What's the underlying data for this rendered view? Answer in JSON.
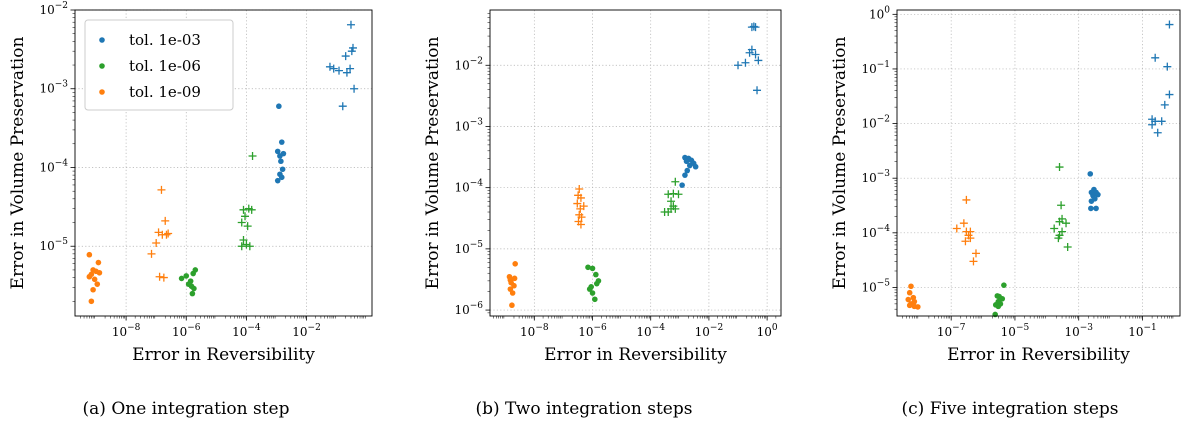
{
  "colors": {
    "tol_1e-03": "#1f77b4",
    "tol_1e-06": "#2ca02c",
    "tol_1e-09": "#ff7f0e"
  },
  "chart_data": [
    {
      "type": "scatter",
      "caption": "(a) One integration step",
      "xlabel": "Error in Reversibility",
      "ylabel": "Error in Volume Preservation",
      "xscale": "log",
      "yscale": "log",
      "xlim": [
        2e-10,
        1.5
      ],
      "ylim": [
        1.3e-06,
        0.01
      ],
      "xticks": [
        -8,
        -6,
        -4,
        -2
      ],
      "yticks": [
        -5,
        -4,
        -3,
        -2
      ],
      "grid": true,
      "legend": {
        "placement": "top-left",
        "entries": [
          {
            "label": "tol. 1e-03",
            "color_key": "tol_1e-03"
          },
          {
            "label": "tol. 1e-06",
            "color_key": "tol_1e-06"
          },
          {
            "label": "tol. 1e-09",
            "color_key": "tol_1e-09"
          }
        ]
      },
      "series": [
        {
          "name": "tol. 1e-03",
          "color_key": "tol_1e-03",
          "marker": "dot",
          "points": [
            [
              0.0012,
              0.0006
            ],
            [
              0.0015,
              0.00021
            ],
            [
              0.0011,
              0.00016
            ],
            [
              0.0013,
              0.00014
            ],
            [
              0.0017,
              0.00015
            ],
            [
              0.0014,
              0.00012
            ],
            [
              0.0016,
              9.5e-05
            ],
            [
              0.0013,
              8.2e-05
            ],
            [
              0.0011,
              6.8e-05
            ],
            [
              0.0015,
              7.5e-05
            ]
          ]
        },
        {
          "name": "tol. 1e-03",
          "color_key": "tol_1e-03",
          "marker": "plus",
          "points": [
            [
              0.3,
              0.0065
            ],
            [
              0.35,
              0.0033
            ],
            [
              0.32,
              0.003
            ],
            [
              0.2,
              0.0026
            ],
            [
              0.28,
              0.0018
            ],
            [
              0.22,
              0.0016
            ],
            [
              0.06,
              0.0019
            ],
            [
              0.08,
              0.0018
            ],
            [
              0.12,
              0.0017
            ],
            [
              0.38,
              0.001
            ],
            [
              0.16,
              0.0006
            ]
          ]
        },
        {
          "name": "tol. 1e-06",
          "color_key": "tol_1e-06",
          "marker": "dot",
          "points": [
            [
              7e-07,
              3.9e-06
            ],
            [
              1e-06,
              4.2e-06
            ],
            [
              1.4e-06,
              3.6e-06
            ],
            [
              1.7e-06,
              4.5e-06
            ],
            [
              2e-06,
              5e-06
            ],
            [
              1.5e-06,
              3.1e-06
            ],
            [
              1.8e-06,
              2.9e-06
            ],
            [
              1.6e-06,
              2.5e-06
            ],
            [
              1.2e-06,
              3.3e-06
            ]
          ]
        },
        {
          "name": "tol. 1e-06",
          "color_key": "tol_1e-06",
          "marker": "plus",
          "points": [
            [
              0.00016,
              0.00014
            ],
            [
              0.00012,
              3e-05
            ],
            [
              8e-05,
              2.9e-05
            ],
            [
              0.00015,
              2.9e-05
            ],
            [
              9e-05,
              2.4e-05
            ],
            [
              7e-05,
              2e-05
            ],
            [
              0.00011,
              1.8e-05
            ],
            [
              8e-05,
              1.2e-05
            ],
            [
              0.0001,
              1.05e-05
            ],
            [
              0.00013,
              1e-05
            ],
            [
              7e-05,
              1e-05
            ]
          ]
        },
        {
          "name": "tol. 1e-09",
          "color_key": "tol_1e-09",
          "marker": "dot",
          "points": [
            [
              6e-10,
              7.8e-06
            ],
            [
              1.2e-09,
              6.2e-06
            ],
            [
              8e-10,
              5e-06
            ],
            [
              1e-09,
              4.8e-06
            ],
            [
              1.3e-09,
              4.6e-06
            ],
            [
              7e-10,
              4.4e-06
            ],
            [
              6e-10,
              4.1e-06
            ],
            [
              9e-10,
              3.8e-06
            ],
            [
              1.1e-09,
              3.3e-06
            ],
            [
              8e-10,
              2.8e-06
            ],
            [
              7e-10,
              2e-06
            ]
          ]
        },
        {
          "name": "tol. 1e-09",
          "color_key": "tol_1e-09",
          "marker": "plus",
          "points": [
            [
              1.5e-07,
              5.2e-05
            ],
            [
              2e-07,
              2.1e-05
            ],
            [
              1.2e-07,
              1.5e-05
            ],
            [
              2.5e-07,
              1.45e-05
            ],
            [
              1.6e-07,
              1.4e-05
            ],
            [
              2.2e-07,
              1.4e-05
            ],
            [
              1e-07,
              1.1e-05
            ],
            [
              7e-08,
              8e-06
            ],
            [
              1.3e-07,
              4.1e-06
            ],
            [
              1.8e-07,
              4e-06
            ]
          ]
        }
      ]
    },
    {
      "type": "scatter",
      "caption": "(b) Two integration steps",
      "xlabel": "Error in Reversibility",
      "ylabel": "Error in Volume Preservation",
      "xscale": "log",
      "yscale": "log",
      "xlim": [
        3e-10,
        3
      ],
      "ylim": [
        8e-07,
        0.08
      ],
      "xticks": [
        -8,
        -6,
        -4,
        -2,
        0
      ],
      "yticks": [
        -6,
        -5,
        -4,
        -3,
        -2
      ],
      "grid": true,
      "series": [
        {
          "name": "tol. 1e-03",
          "color_key": "tol_1e-03",
          "marker": "dot",
          "points": [
            [
              0.0015,
              0.00031
            ],
            [
              0.002,
              0.0003
            ],
            [
              0.0017,
              0.00027
            ],
            [
              0.0025,
              0.00028
            ],
            [
              0.003,
              0.00025
            ],
            [
              0.0022,
              0.00023
            ],
            [
              0.0035,
              0.00022
            ],
            [
              0.0018,
              0.00019
            ],
            [
              0.0015,
              0.00016
            ],
            [
              0.0012,
              0.00011
            ]
          ]
        },
        {
          "name": "tol. 1e-03",
          "color_key": "tol_1e-03",
          "marker": "plus",
          "points": [
            [
              0.3,
              0.042
            ],
            [
              0.35,
              0.043
            ],
            [
              0.4,
              0.042
            ],
            [
              0.3,
              0.018
            ],
            [
              0.25,
              0.016
            ],
            [
              0.4,
              0.015
            ],
            [
              0.5,
              0.012
            ],
            [
              0.18,
              0.011
            ],
            [
              0.1,
              0.01
            ],
            [
              0.45,
              0.0039
            ]
          ]
        },
        {
          "name": "tol. 1e-06",
          "color_key": "tol_1e-06",
          "marker": "dot",
          "points": [
            [
              7e-07,
              5e-06
            ],
            [
              1e-06,
              4.8e-06
            ],
            [
              1.3e-06,
              3.8e-06
            ],
            [
              1.6e-06,
              3e-06
            ],
            [
              1.4e-06,
              2.7e-06
            ],
            [
              9e-07,
              2.4e-06
            ],
            [
              8e-07,
              2.2e-06
            ],
            [
              1e-06,
              1.9e-06
            ],
            [
              1.2e-06,
              1.5e-06
            ]
          ]
        },
        {
          "name": "tol. 1e-06",
          "color_key": "tol_1e-06",
          "marker": "plus",
          "points": [
            [
              0.0007,
              0.000125
            ],
            [
              0.0006,
              8e-05
            ],
            [
              0.0004,
              7.8e-05
            ],
            [
              0.0009,
              7.8e-05
            ],
            [
              0.0005,
              6e-05
            ],
            [
              0.0006,
              5e-05
            ],
            [
              0.0005,
              4.5e-05
            ],
            [
              0.0007,
              4.5e-05
            ],
            [
              0.0003,
              4e-05
            ],
            [
              0.0004,
              4e-05
            ]
          ]
        },
        {
          "name": "tol. 1e-09",
          "color_key": "tol_1e-09",
          "marker": "dot",
          "points": [
            [
              2.2e-09,
              5.7e-06
            ],
            [
              1.4e-09,
              3.5e-06
            ],
            [
              2.1e-09,
              3.3e-06
            ],
            [
              1.5e-09,
              3.1e-06
            ],
            [
              1.6e-09,
              2.8e-06
            ],
            [
              2e-09,
              2.5e-06
            ],
            [
              1.5e-09,
              2.2e-06
            ],
            [
              1.8e-09,
              1.9e-06
            ],
            [
              1.7e-09,
              1.2e-06
            ]
          ]
        },
        {
          "name": "tol. 1e-09",
          "color_key": "tol_1e-09",
          "marker": "plus",
          "points": [
            [
              3.5e-07,
              9.5e-05
            ],
            [
              3.2e-07,
              7.5e-05
            ],
            [
              4e-07,
              6.8e-05
            ],
            [
              3e-07,
              5.5e-05
            ],
            [
              5e-07,
              5e-05
            ],
            [
              3.8e-07,
              4.5e-05
            ],
            [
              3.5e-07,
              3.6e-05
            ],
            [
              4.2e-07,
              3.3e-05
            ],
            [
              3.3e-07,
              2.8e-05
            ],
            [
              4e-07,
              2.5e-05
            ]
          ]
        }
      ]
    },
    {
      "type": "scatter",
      "caption": "(c) Five integration steps",
      "xlabel": "Error in Reversibility",
      "ylabel": "Error in Volume Preservation",
      "xscale": "log",
      "yscale": "log",
      "xlim": [
        2e-09,
        1.5
      ],
      "ylim": [
        3e-06,
        1.2
      ],
      "xticks": [
        -7,
        -5,
        -3,
        -1
      ],
      "yticks": [
        -5,
        -4,
        -3,
        -2,
        -1,
        0
      ],
      "grid": true,
      "series": [
        {
          "name": "tol. 1e-03",
          "color_key": "tol_1e-03",
          "marker": "dot",
          "points": [
            [
              0.0023,
              0.0012
            ],
            [
              0.003,
              0.00062
            ],
            [
              0.0025,
              0.00055
            ],
            [
              0.004,
              0.0005
            ],
            [
              0.0035,
              0.00055
            ],
            [
              0.0028,
              0.00048
            ],
            [
              0.0032,
              0.00042
            ],
            [
              0.0025,
              0.00038
            ],
            [
              0.0024,
              0.00028
            ],
            [
              0.0035,
              0.00028
            ]
          ]
        },
        {
          "name": "tol. 1e-03",
          "color_key": "tol_1e-03",
          "marker": "plus",
          "points": [
            [
              0.7,
              0.65
            ],
            [
              0.25,
              0.16
            ],
            [
              0.6,
              0.11
            ],
            [
              0.7,
              0.034
            ],
            [
              0.5,
              0.022
            ],
            [
              0.2,
              0.012
            ],
            [
              0.25,
              0.011
            ],
            [
              0.4,
              0.011
            ],
            [
              0.2,
              0.0095
            ],
            [
              0.3,
              0.0068
            ]
          ]
        },
        {
          "name": "tol. 1e-06",
          "color_key": "tol_1e-06",
          "marker": "dot",
          "points": [
            [
              2.8e-06,
              7e-06
            ],
            [
              3.2e-06,
              6.8e-06
            ],
            [
              4e-06,
              6.2e-06
            ],
            [
              3e-06,
              5.5e-06
            ],
            [
              3.5e-06,
              5e-06
            ],
            [
              2.5e-06,
              4.8e-06
            ],
            [
              4.5e-06,
              1.1e-05
            ],
            [
              2.4e-06,
              3.2e-06
            ],
            [
              3e-06,
              4.5e-06
            ]
          ]
        },
        {
          "name": "tol. 1e-06",
          "color_key": "tol_1e-06",
          "marker": "plus",
          "points": [
            [
              0.00025,
              0.0016
            ],
            [
              0.00028,
              0.00032
            ],
            [
              0.0003,
              0.00018
            ],
            [
              0.00025,
              0.00016
            ],
            [
              0.0004,
              0.00015
            ],
            [
              0.00017,
              0.00012
            ],
            [
              0.0003,
              0.000105
            ],
            [
              0.00025,
              9e-05
            ],
            [
              0.00023,
              8e-05
            ],
            [
              0.00045,
              5.5e-05
            ]
          ]
        },
        {
          "name": "tol. 1e-09",
          "color_key": "tol_1e-09",
          "marker": "dot",
          "points": [
            [
              5.5e-09,
              1.05e-05
            ],
            [
              5e-09,
              8e-06
            ],
            [
              6.5e-09,
              6.5e-06
            ],
            [
              4.5e-09,
              6e-06
            ],
            [
              7e-09,
              5.5e-06
            ],
            [
              5.5e-09,
              5e-06
            ],
            [
              5e-09,
              4.7e-06
            ],
            [
              7e-09,
              4.5e-06
            ],
            [
              9e-09,
              4.4e-06
            ]
          ]
        },
        {
          "name": "tol. 1e-09",
          "color_key": "tol_1e-09",
          "marker": "plus",
          "points": [
            [
              3e-07,
              0.0004
            ],
            [
              2.5e-07,
              0.00015
            ],
            [
              1.5e-07,
              0.00012
            ],
            [
              3e-07,
              0.000105
            ],
            [
              4e-07,
              0.000105
            ],
            [
              3.5e-07,
              9e-05
            ],
            [
              4e-07,
              8e-05
            ],
            [
              2.8e-07,
              7e-05
            ],
            [
              6e-07,
              4.2e-05
            ],
            [
              5e-07,
              3e-05
            ]
          ]
        }
      ]
    }
  ]
}
